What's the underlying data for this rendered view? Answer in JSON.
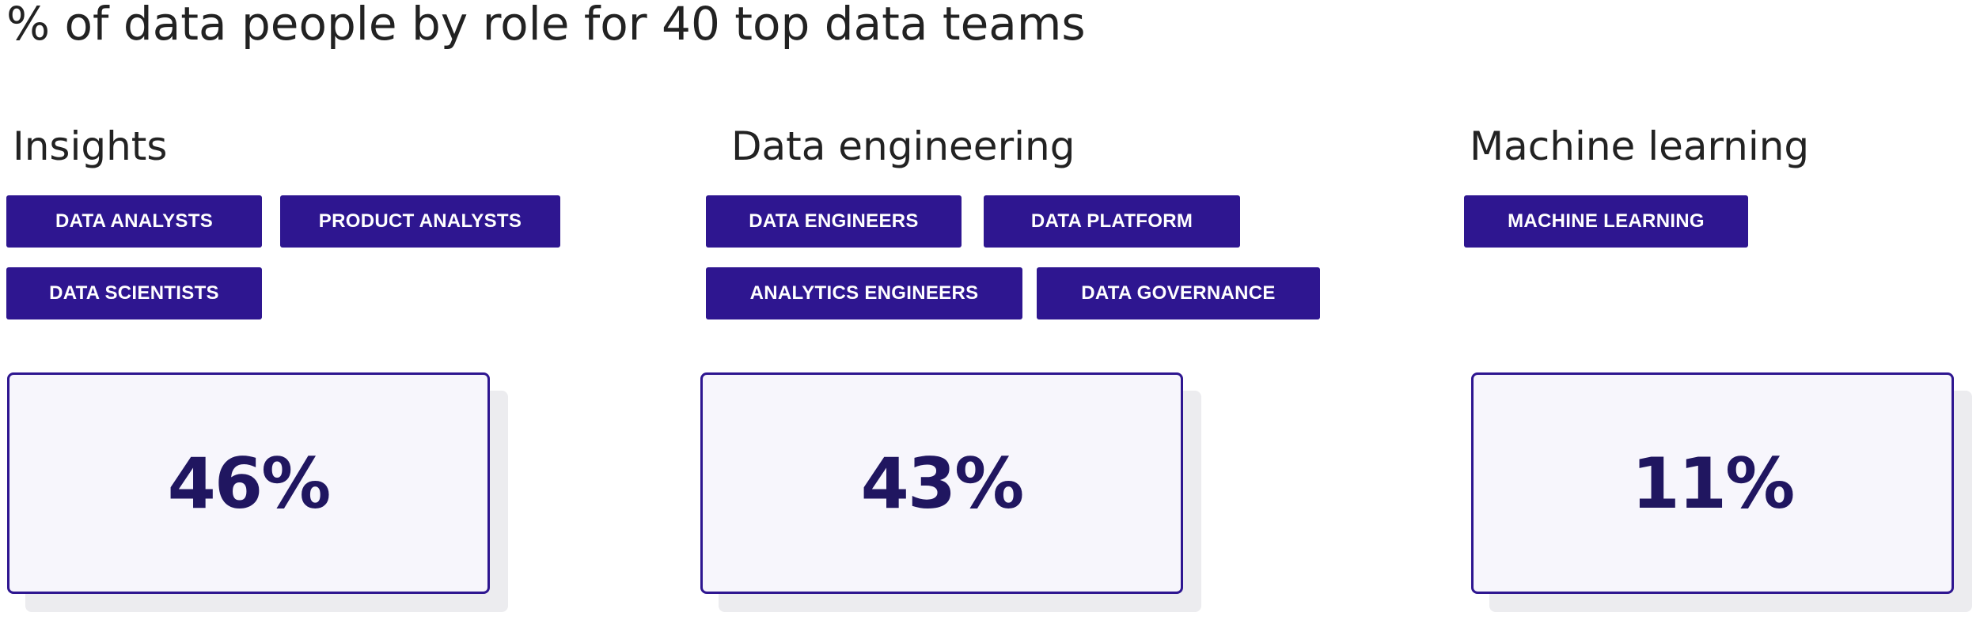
{
  "chart_data": {
    "type": "table",
    "title": "% of data people by role for 40 top data teams",
    "colors": {
      "tag_bg": "#2e1690",
      "card_border": "#2e1690",
      "value_text": "#201660",
      "card_bg": "#f7f6fc"
    },
    "groups": [
      {
        "name": "Insights",
        "roles": [
          "DATA ANALYSTS",
          "PRODUCT ANALYSTS",
          "DATA SCIENTISTS"
        ],
        "value": 46,
        "value_label": "46%"
      },
      {
        "name": "Data engineering",
        "roles": [
          "DATA ENGINEERS",
          "DATA PLATFORM",
          "ANALYTICS ENGINEERS",
          "DATA GOVERNANCE"
        ],
        "value": 43,
        "value_label": "43%"
      },
      {
        "name": "Machine learning",
        "roles": [
          "MACHINE LEARNING"
        ],
        "value": 11,
        "value_label": "11%"
      }
    ]
  }
}
